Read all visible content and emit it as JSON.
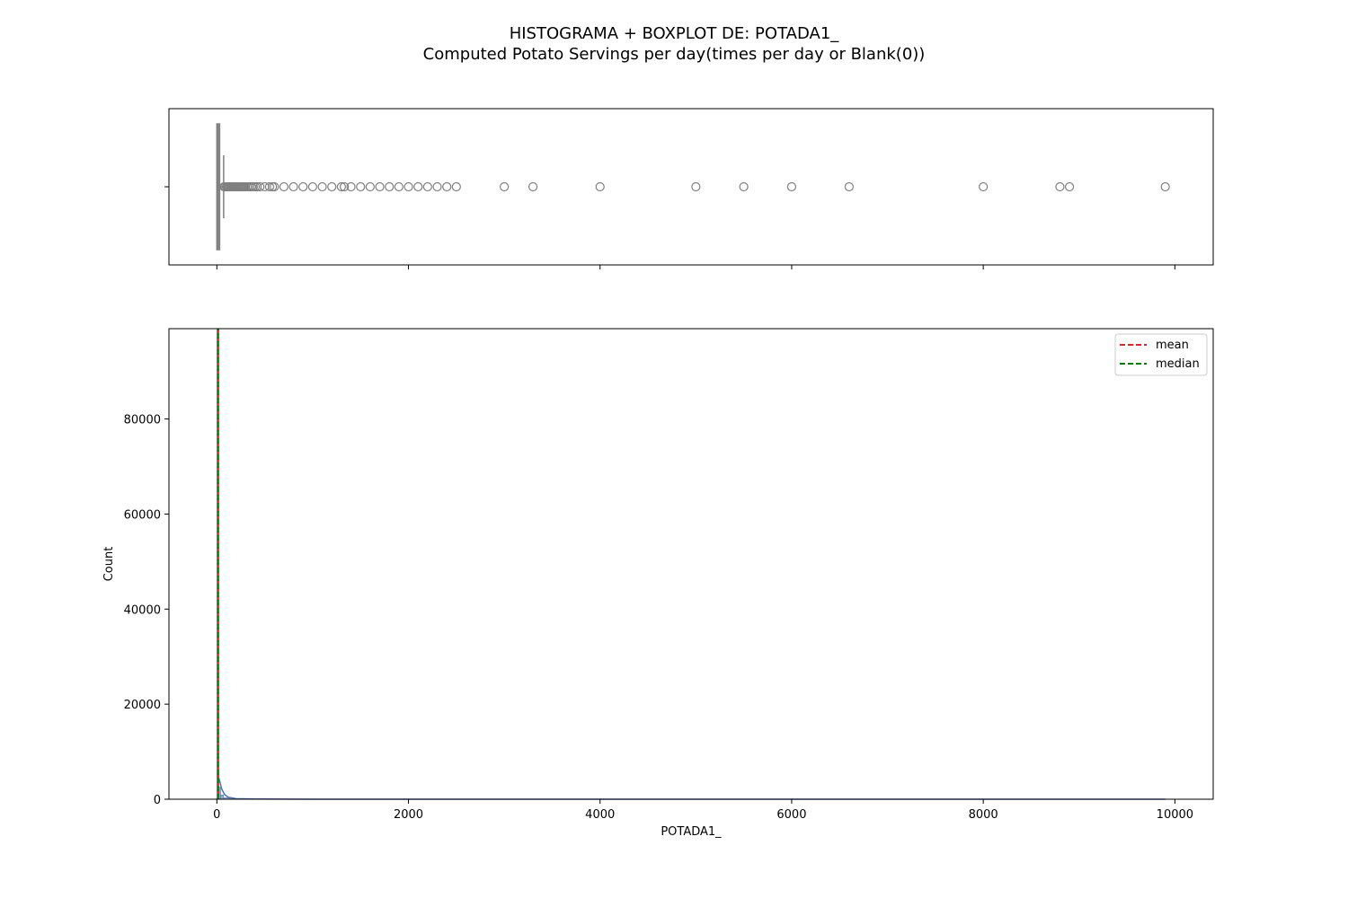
{
  "title": "HISTOGRAMA + BOXPLOT DE: POTADA1_",
  "subtitle": "Computed Potato Servings per day(times per day or Blank(0))",
  "chart_data": [
    {
      "type": "boxplot",
      "orientation": "horizontal",
      "xlim": [
        -500,
        10400
      ],
      "box": {
        "whisker_low": 0,
        "q1": 0,
        "median": 14,
        "q3": 29,
        "whisker_high": 71
      },
      "outliers": [
        75,
        85,
        100,
        110,
        120,
        130,
        140,
        150,
        160,
        170,
        180,
        190,
        200,
        210,
        220,
        230,
        240,
        250,
        260,
        270,
        280,
        290,
        300,
        320,
        340,
        360,
        380,
        400,
        420,
        450,
        500,
        550,
        580,
        600,
        700,
        800,
        900,
        1000,
        1100,
        1200,
        1300,
        1330,
        1400,
        1500,
        1600,
        1700,
        1800,
        1900,
        2000,
        2100,
        2200,
        2300,
        2400,
        2500,
        3000,
        3300,
        4000,
        5000,
        5500,
        6000,
        6600,
        8000,
        8800,
        8900,
        9900
      ],
      "color": "#808080",
      "grid": false
    },
    {
      "type": "histogram",
      "xlabel": "POTADA1_",
      "ylabel": "Count",
      "xlim": [
        -500,
        10400
      ],
      "ylim": [
        0,
        99000
      ],
      "x_ticks": [
        0,
        2000,
        4000,
        6000,
        8000,
        10000
      ],
      "y_ticks": [
        0,
        20000,
        40000,
        60000,
        80000
      ],
      "bars": [
        {
          "x0": 0,
          "x1": 10,
          "count": 99000
        },
        {
          "x0": 10,
          "x1": 20,
          "count": 6000
        },
        {
          "x0": 20,
          "x1": 40,
          "count": 2500
        },
        {
          "x0": 40,
          "x1": 70,
          "count": 900
        },
        {
          "x0": 70,
          "x1": 150,
          "count": 300
        },
        {
          "x0": 150,
          "x1": 9900,
          "count": 20
        }
      ],
      "kde": [
        [
          0,
          5000
        ],
        [
          15,
          4800
        ],
        [
          30,
          3800
        ],
        [
          50,
          2200
        ],
        [
          80,
          1000
        ],
        [
          120,
          400
        ],
        [
          200,
          120
        ],
        [
          400,
          40
        ],
        [
          1000,
          10
        ],
        [
          3000,
          5
        ],
        [
          6000,
          3
        ],
        [
          9900,
          2
        ]
      ],
      "mean_line": {
        "label": "mean",
        "x": 14,
        "color": "#d62728"
      },
      "median_line": {
        "label": "median",
        "x": 14,
        "color": "#008000"
      },
      "bar_color": "#4c72b0",
      "legend_position": "top-right",
      "grid": false
    }
  ]
}
